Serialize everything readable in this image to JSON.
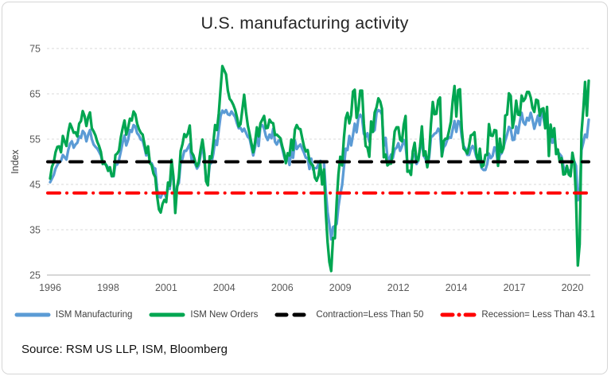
{
  "chart": {
    "title": "U.S. manufacturing activity",
    "source": "Source: RSM US LLP, ISM, Bloomberg",
    "colors": {
      "ism_manufacturing": "#5B9BD5",
      "ism_new_orders": "#00A651",
      "contraction_line": "#000000",
      "recession_line": "#FF0000",
      "gridline": "#D9D9D9",
      "axis_line": "#BFBFBF",
      "tick_text": "#595959",
      "title_text": "#262626"
    }
  },
  "chart_data": {
    "type": "line",
    "title": "U.S. manufacturing activity",
    "xlabel": "",
    "ylabel": "Index",
    "ylim": [
      25,
      75
    ],
    "y_ticks": [
      25,
      35,
      45,
      55,
      65,
      75
    ],
    "grid": "horizontal-dashed",
    "legend_position": "bottom",
    "x_frequency": "monthly",
    "x_start": "1996-01",
    "x_end": "2020-10",
    "x_tick_month_indices": [
      0,
      32,
      64,
      96,
      128,
      160,
      192,
      224,
      256,
      288
    ],
    "x_tick_labels": [
      "1996",
      "1998",
      "2001",
      "2004",
      "2006",
      "2009",
      "2012",
      "2014",
      "2017",
      "2020"
    ],
    "series": [
      {
        "name": "ISM Manufacturing",
        "type": "line",
        "style": "solid",
        "color": "#5B9BD5",
        "values": [
          45.5,
          46.3,
          47.1,
          48.5,
          49.3,
          50.0,
          50.2,
          51.5,
          51.0,
          50.5,
          52.6,
          54.0,
          54.5,
          53.1,
          53.8,
          54.2,
          55.6,
          55.3,
          56.8,
          56.3,
          54.5,
          56.0,
          57.0,
          55.0,
          53.8,
          53.3,
          52.9,
          52.2,
          51.4,
          49.8,
          49.5,
          49.3,
          48.7,
          48.3,
          46.8,
          46.8,
          49.5,
          49.4,
          50.4,
          52.3,
          54.3,
          55.8,
          53.6,
          54.8,
          57.0,
          56.6,
          58.1,
          57.8,
          56.3,
          55.8,
          54.9,
          54.7,
          53.2,
          51.4,
          52.5,
          49.9,
          49.7,
          48.7,
          48.5,
          43.9,
          42.3,
          42.1,
          43.1,
          43.2,
          42.1,
          44.7,
          44.0,
          47.9,
          46.2,
          40.8,
          44.6,
          45.3,
          49.9,
          50.7,
          52.4,
          52.4,
          53.1,
          53.9,
          50.5,
          50.2,
          49.5,
          48.5,
          49.2,
          51.6,
          53.9,
          50.5,
          46.2,
          45.4,
          49.4,
          49.8,
          51.8,
          54.7,
          53.7,
          57.0,
          60.1,
          61.3,
          60.8,
          61.4,
          60.5,
          60.3,
          61.1,
          60.5,
          59.9,
          58.5,
          57.4,
          57.5,
          56.7,
          57.3,
          56.4,
          55.5,
          55.2,
          53.3,
          51.4,
          53.2,
          56.4,
          53.5,
          58.0,
          58.1,
          57.3,
          55.6,
          54.8,
          56.0,
          55.2,
          57.3,
          54.4,
          53.8,
          54.7,
          54.5,
          52.9,
          51.2,
          49.9,
          51.4,
          49.3,
          52.3,
          50.9,
          54.7,
          52.8,
          53.4,
          53.8,
          52.9,
          52.0,
          50.9,
          50.8,
          48.4,
          50.7,
          48.3,
          48.6,
          48.6,
          49.6,
          50.2,
          50.0,
          49.9,
          43.5,
          38.9,
          36.2,
          32.9,
          35.6,
          35.8,
          36.3,
          40.1,
          42.8,
          44.8,
          48.9,
          52.9,
          52.6,
          55.7,
          53.6,
          55.9,
          58.4,
          56.5,
          59.6,
          60.4,
          59.7,
          56.2,
          55.5,
          56.3,
          54.4,
          56.9,
          56.6,
          57.0,
          60.8,
          61.4,
          61.2,
          60.4,
          53.5,
          55.3,
          50.9,
          50.6,
          51.6,
          50.8,
          52.7,
          53.1,
          54.1,
          52.4,
          53.4,
          54.8,
          53.5,
          49.7,
          49.8,
          49.6,
          51.5,
          51.7,
          49.5,
          50.2,
          53.1,
          54.2,
          51.3,
          50.7,
          49.0,
          50.9,
          55.4,
          55.7,
          56.2,
          56.4,
          57.3,
          56.5,
          51.3,
          53.2,
          53.7,
          54.9,
          55.4,
          55.3,
          57.1,
          59.0,
          56.6,
          59.0,
          58.7,
          55.5,
          53.5,
          52.9,
          51.5,
          51.5,
          52.8,
          53.5,
          52.7,
          51.1,
          50.2,
          50.1,
          48.6,
          48.2,
          48.2,
          49.5,
          51.8,
          50.8,
          51.3,
          53.2,
          52.6,
          49.4,
          51.5,
          51.9,
          53.2,
          54.7,
          56.0,
          57.7,
          57.2,
          54.8,
          54.9,
          57.8,
          56.3,
          58.8,
          60.8,
          58.7,
          58.2,
          59.7,
          59.1,
          60.8,
          59.3,
          57.3,
          58.7,
          60.2,
          58.1,
          61.3,
          59.8,
          57.7,
          59.3,
          54.1,
          56.6,
          54.2,
          55.3,
          52.8,
          52.1,
          51.7,
          51.2,
          49.1,
          47.8,
          48.3,
          48.1,
          47.2,
          50.9,
          50.1,
          49.1,
          41.5,
          43.1,
          52.6,
          54.2,
          56.0,
          55.4,
          59.3
        ]
      },
      {
        "name": "ISM New Orders",
        "type": "line",
        "style": "solid",
        "color": "#00A651",
        "values": [
          46.3,
          48.9,
          49.9,
          52.1,
          53.3,
          53.4,
          52.1,
          55.7,
          54.5,
          53.5,
          56.5,
          58.4,
          57.5,
          56.4,
          56.5,
          55.6,
          58.4,
          59.0,
          61.2,
          60.1,
          57.9,
          59.9,
          60.9,
          57.4,
          56.7,
          55.8,
          54.4,
          53.5,
          52.2,
          49.5,
          49.9,
          49.1,
          48.0,
          48.8,
          46.8,
          46.9,
          51.5,
          51.8,
          52.5,
          55.4,
          57.4,
          59.1,
          56.0,
          57.5,
          59.5,
          59.1,
          61.1,
          60.5,
          58.4,
          57.2,
          56.4,
          56.0,
          54.0,
          51.9,
          53.4,
          49.7,
          49.3,
          47.4,
          46.6,
          42.4,
          39.5,
          38.8,
          40.7,
          41.6,
          41.1,
          45.4,
          44.7,
          50.4,
          46.7,
          38.7,
          44.3,
          46.6,
          52.4,
          53.9,
          56.1,
          55.5,
          56.3,
          58.0,
          52.1,
          51.4,
          50.0,
          49.0,
          49.9,
          52.7,
          54.9,
          51.8,
          45.7,
          44.8,
          51.2,
          50.8,
          54.3,
          58.1,
          57.0,
          60.7,
          66.2,
          71.1,
          70.2,
          69.3,
          65.7,
          63.9,
          63.4,
          62.6,
          61.5,
          59.9,
          57.8,
          58.3,
          61.5,
          64.8,
          61.0,
          58.0,
          56.2,
          54.1,
          52.1,
          54.3,
          57.6,
          55.6,
          58.5,
          59.3,
          60.1,
          57.4,
          57.5,
          59.3,
          58.7,
          58.5,
          55.9,
          56.0,
          55.6,
          55.2,
          53.4,
          52.0,
          49.7,
          51.9,
          51.4,
          54.9,
          52.6,
          57.1,
          58.1,
          57.3,
          57.2,
          55.3,
          53.4,
          52.3,
          52.6,
          50.2,
          49.5,
          49.1,
          46.5,
          45.8,
          47.0,
          49.6,
          45.0,
          48.3,
          38.8,
          32.2,
          27.9,
          25.9,
          33.2,
          33.1,
          41.2,
          47.2,
          51.1,
          49.2,
          55.3,
          59.6,
          60.8,
          58.5,
          60.3,
          65.5,
          65.9,
          59.7,
          61.5,
          65.7,
          65.7,
          58.5,
          53.5,
          53.1,
          51.1,
          58.9,
          56.6,
          60.9,
          62.0,
          64.0,
          63.3,
          61.7,
          51.0,
          51.6,
          49.2,
          49.6,
          49.6,
          52.4,
          56.7,
          57.6,
          57.6,
          54.9,
          54.5,
          58.2,
          60.1,
          47.8,
          48.0,
          47.1,
          52.3,
          54.2,
          50.3,
          50.3,
          53.3,
          57.8,
          51.4,
          52.3,
          48.8,
          51.9,
          58.3,
          63.2,
          60.5,
          60.6,
          63.6,
          64.2,
          51.2,
          54.5,
          55.1,
          55.1,
          56.9,
          58.9,
          63.4,
          66.7,
          60.0,
          65.8,
          66.0,
          57.3,
          52.9,
          52.5,
          51.8,
          53.5,
          55.8,
          56.0,
          56.5,
          51.7,
          50.1,
          52.9,
          48.9,
          49.2,
          51.5,
          51.5,
          58.3,
          55.8,
          55.7,
          57.0,
          56.9,
          49.1,
          55.1,
          52.1,
          53.0,
          60.2,
          60.4,
          65.1,
          64.5,
          57.5,
          59.5,
          63.5,
          60.4,
          60.3,
          64.6,
          63.4,
          64.0,
          65.4,
          65.4,
          64.2,
          61.9,
          61.0,
          63.7,
          63.5,
          60.2,
          61.6,
          61.8,
          57.4,
          62.1,
          51.3,
          58.2,
          55.5,
          57.4,
          51.7,
          52.7,
          50.0,
          50.8,
          47.2,
          47.3,
          49.1,
          47.2,
          46.8,
          52.0,
          49.8,
          42.2,
          27.1,
          31.8,
          56.4,
          61.5,
          67.6,
          60.2,
          67.9
        ]
      },
      {
        "name": "Contraction=Less Than 50",
        "type": "hline",
        "style": "dashed",
        "color": "#000000",
        "value": 50
      },
      {
        "name": "Recession= Less Than 43.1",
        "type": "hline",
        "style": "dash-dot",
        "color": "#FF0000",
        "value": 43.1
      }
    ]
  }
}
